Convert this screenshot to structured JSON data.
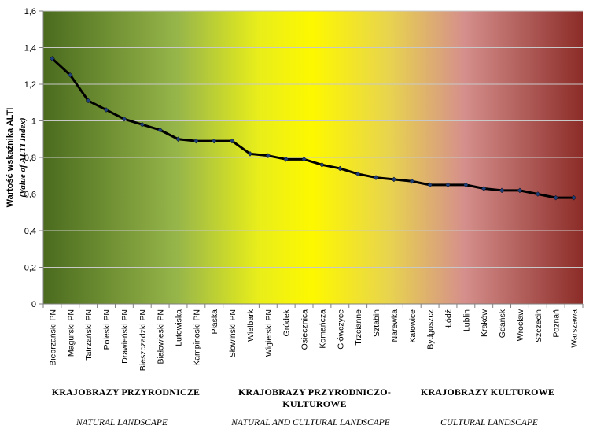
{
  "chart_data": {
    "type": "line",
    "ylabel": "Wartość wskaźnika  ALTI",
    "ylabel_en": "(Value of ALTI Index)",
    "ylim": [
      0,
      1.6
    ],
    "y_ticks": [
      "0",
      "0,2",
      "0,4",
      "0,6",
      "0,8",
      "1",
      "1,2",
      "1,4",
      "1,6"
    ],
    "grid": true,
    "background": [
      "#4a6b1e",
      "#97b64a",
      "#e9ee1a",
      "#fdf800",
      "#e8d44e",
      "#d58f8c",
      "#8c2c28"
    ],
    "line_color": "#000000",
    "categories": [
      "Biebrzański PN",
      "Magurski PN",
      "Tatrzański PN",
      "Poleski PN",
      "Drawieński PN",
      "Bieszczadzki PN",
      "Białowieski PN",
      "Lutowiska",
      "Kampinoski PN",
      "Płaska",
      "Słowiński PN",
      "Wielbark",
      "Wigierski PN",
      "Gródek",
      "Osiecznica",
      "Komańcza",
      "Główczyce",
      "Trzcianne",
      "Sztabin",
      "Narewka",
      "Katowice",
      "Bydgoszcz",
      "Łódź",
      "Lublin",
      "Kraków",
      "Gdańsk",
      "Wrocław",
      "Szczecin",
      "Poznań",
      "Warszawa"
    ],
    "series": [
      {
        "values": [
          1.34,
          1.25,
          1.11,
          1.06,
          1.01,
          0.98,
          0.95,
          0.9,
          0.89,
          0.89,
          0.89,
          0.82,
          0.81,
          0.79,
          0.79,
          0.76,
          0.74,
          0.71,
          0.69,
          0.68,
          0.67,
          0.65,
          0.65,
          0.65,
          0.63,
          0.62,
          0.62,
          0.6,
          0.58,
          0.58
        ]
      }
    ],
    "groups": [
      {
        "label_pl": "KRAJOBRAZY PRZYRODNICZE",
        "label_en": "NATURAL LANDSCAPE"
      },
      {
        "label_pl": "KRAJOBRAZY PRZYRODNICZO-\nKULTUROWE",
        "label_en": "NATURAL AND CULTURAL LANDSCAPE"
      },
      {
        "label_pl": "KRAJOBRAZY KULTUROWE",
        "label_en": "CULTURAL LANDSCAPE"
      }
    ]
  }
}
